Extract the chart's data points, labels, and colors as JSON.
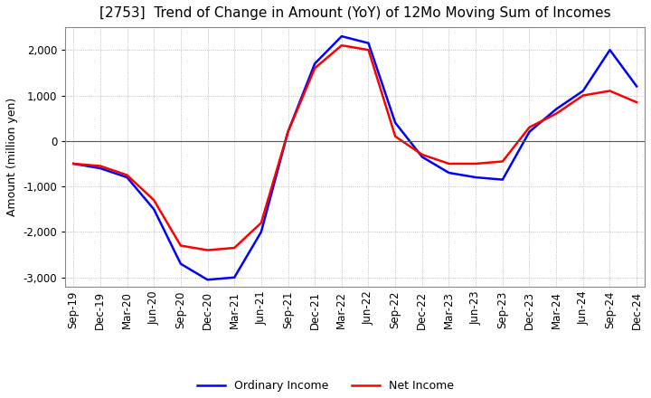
{
  "title": "[2753]  Trend of Change in Amount (YoY) of 12Mo Moving Sum of Incomes",
  "ylabel": "Amount (million yen)",
  "title_fontsize": 11,
  "label_fontsize": 9,
  "tick_fontsize": 8.5,
  "background_color": "#ffffff",
  "grid_color": "#aaaaaa",
  "ordinary_income_color": "#0000ff",
  "net_income_color": "#ff0000",
  "dates": [
    "Sep-19",
    "Dec-19",
    "Mar-20",
    "Jun-20",
    "Sep-20",
    "Dec-20",
    "Mar-21",
    "Jun-21",
    "Sep-21",
    "Dec-21",
    "Mar-22",
    "Jun-22",
    "Sep-22",
    "Dec-22",
    "Mar-23",
    "Jun-23",
    "Sep-23",
    "Dec-23",
    "Mar-24",
    "Jun-24",
    "Sep-24",
    "Dec-24"
  ],
  "ordinary_income": [
    -500,
    -600,
    -800,
    -1500,
    -2700,
    -3050,
    -3000,
    -2000,
    200,
    1700,
    2300,
    2150,
    400,
    -350,
    -700,
    -800,
    -850,
    200,
    700,
    1100,
    2000,
    1200
  ],
  "net_income": [
    -500,
    -550,
    -750,
    -1300,
    -2300,
    -2400,
    -2350,
    -1800,
    200,
    1600,
    2100,
    2000,
    100,
    -300,
    -500,
    -500,
    -450,
    300,
    600,
    1000,
    1100,
    850
  ],
  "ylim": [
    -3200,
    2500
  ],
  "yticks": [
    -3000,
    -2000,
    -1000,
    0,
    1000,
    2000
  ]
}
